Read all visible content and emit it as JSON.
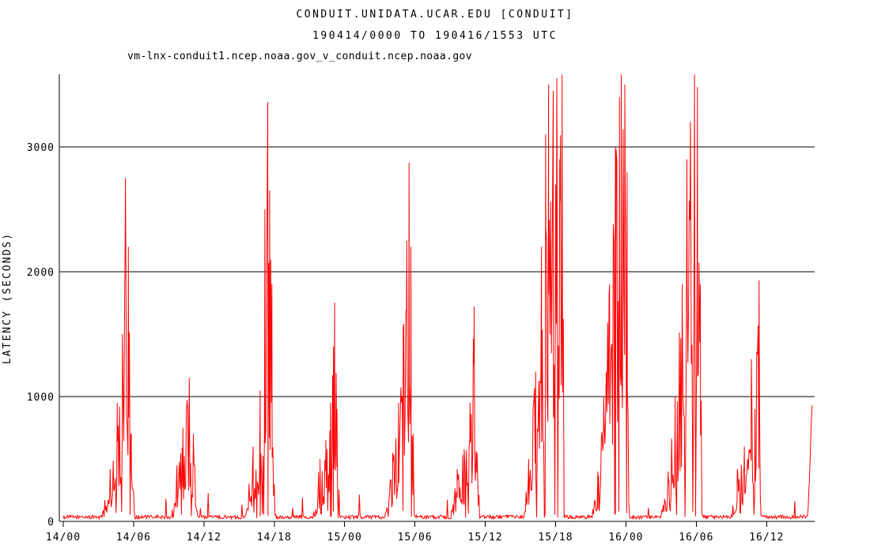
{
  "title": {
    "line1": "CONDUIT.UNIDATA.UCAR.EDU [CONDUIT]",
    "line2": "190414/0000 TO 190416/1553 UTC"
  },
  "legend": {
    "label": "vm-lnx-conduit1.ncep.noaa.gov_v_conduit.ncep.noaa.gov",
    "color": "#ff0000"
  },
  "chart_data": {
    "type": "line",
    "title": "CONDUIT.UNIDATA.UCAR.EDU [CONDUIT]",
    "subtitle": "190414/0000 TO 190416/1553 UTC",
    "series_name": "vm-lnx-conduit1.ncep.noaa.gov_v_conduit.ncep.noaa.gov",
    "line_color": "#ff0000",
    "grid": true,
    "ylabel": "LATENCY (SECONDS)",
    "xlabel": "",
    "yticks": [
      0,
      1000,
      2000,
      3000
    ],
    "ytick_labels": [
      "0",
      "1000",
      "2000",
      "3000"
    ],
    "ylim": [
      0,
      3582
    ],
    "xlim_hours": [
      0,
      63.88
    ],
    "x_tick_interval_hours": 6,
    "xtick_labels": [
      "14/00",
      "14/06",
      "14/12",
      "14/18",
      "15/00",
      "15/06",
      "15/12",
      "15/18",
      "16/00",
      "16/06",
      "16/12"
    ],
    "baseline": {
      "mean": 35,
      "noise": 30
    },
    "peak_events": [
      {
        "time": "14/0520",
        "hour": 5.3,
        "latency": 2750
      },
      {
        "time": "14/1045",
        "hour": 10.75,
        "latency": 1150
      },
      {
        "time": "14/1727",
        "hour": 17.45,
        "latency": 3360
      },
      {
        "time": "14/2309",
        "hour": 23.15,
        "latency": 1750
      },
      {
        "time": "15/0530",
        "hour": 29.5,
        "latency": 2870
      },
      {
        "time": "15/1103",
        "hour": 35.05,
        "latency": 1720
      },
      {
        "time": "15/1833",
        "hour": 42.55,
        "latency": 3580
      },
      {
        "time": "15/2336",
        "hour": 47.6,
        "latency": 3580
      },
      {
        "time": "16/0551",
        "hour": 53.85,
        "latency": 3580
      },
      {
        "time": "16/1121",
        "hour": 59.35,
        "latency": 1930
      },
      {
        "time": "16/1553",
        "hour": 63.88,
        "latency": 930
      }
    ],
    "envelope": [
      [
        0,
        35
      ],
      [
        3.3,
        60
      ],
      [
        4.0,
        420
      ],
      [
        4.6,
        950
      ],
      [
        5.05,
        1500
      ],
      [
        5.3,
        2750
      ],
      [
        5.55,
        2200
      ],
      [
        5.8,
        700
      ],
      [
        6.1,
        35
      ],
      [
        9.2,
        35
      ],
      [
        9.7,
        450
      ],
      [
        10.2,
        750
      ],
      [
        10.75,
        1150
      ],
      [
        11.1,
        700
      ],
      [
        11.45,
        35
      ],
      [
        15.5,
        35
      ],
      [
        16.2,
        600
      ],
      [
        16.8,
        1050
      ],
      [
        17.2,
        2500
      ],
      [
        17.45,
        3360
      ],
      [
        17.6,
        2650
      ],
      [
        17.8,
        1900
      ],
      [
        18.0,
        300
      ],
      [
        18.15,
        35
      ],
      [
        21.3,
        35
      ],
      [
        21.9,
        500
      ],
      [
        22.4,
        650
      ],
      [
        22.8,
        950
      ],
      [
        23.05,
        1400
      ],
      [
        23.15,
        1753
      ],
      [
        23.35,
        900
      ],
      [
        23.6,
        35
      ],
      [
        27.4,
        35
      ],
      [
        28.1,
        550
      ],
      [
        28.6,
        950
      ],
      [
        29.0,
        1550
      ],
      [
        29.3,
        2250
      ],
      [
        29.5,
        2873
      ],
      [
        29.65,
        2200
      ],
      [
        29.85,
        700
      ],
      [
        30.1,
        35
      ],
      [
        33.0,
        35
      ],
      [
        33.6,
        420
      ],
      [
        34.2,
        580
      ],
      [
        34.7,
        950
      ],
      [
        35.05,
        1720
      ],
      [
        35.3,
        550
      ],
      [
        35.55,
        35
      ],
      [
        39.2,
        35
      ],
      [
        39.7,
        500
      ],
      [
        40.3,
        1200
      ],
      [
        40.8,
        2200
      ],
      [
        41.15,
        3100
      ],
      [
        41.4,
        3500
      ],
      [
        41.8,
        3450
      ],
      [
        42.1,
        3550
      ],
      [
        42.35,
        2900
      ],
      [
        42.55,
        3580
      ],
      [
        42.75,
        35
      ],
      [
        45.0,
        35
      ],
      [
        45.6,
        400
      ],
      [
        46.1,
        1000
      ],
      [
        46.6,
        1900
      ],
      [
        47.1,
        3000
      ],
      [
        47.45,
        3400
      ],
      [
        47.6,
        3580
      ],
      [
        47.9,
        3500
      ],
      [
        48.1,
        2800
      ],
      [
        48.25,
        35
      ],
      [
        50.9,
        35
      ],
      [
        51.6,
        400
      ],
      [
        52.2,
        1000
      ],
      [
        52.8,
        1900
      ],
      [
        53.2,
        2900
      ],
      [
        53.5,
        3200
      ],
      [
        53.85,
        3580
      ],
      [
        54.1,
        3480
      ],
      [
        54.35,
        1900
      ],
      [
        54.5,
        35
      ],
      [
        56.9,
        35
      ],
      [
        57.5,
        420
      ],
      [
        58.1,
        600
      ],
      [
        58.7,
        1300
      ],
      [
        59.0,
        900
      ],
      [
        59.35,
        1930
      ],
      [
        59.5,
        35
      ],
      [
        63.5,
        35
      ],
      [
        63.65,
        320
      ],
      [
        63.88,
        930
      ]
    ],
    "spiky_regions": [
      [
        3.3,
        6.1
      ],
      [
        9.2,
        11.45
      ],
      [
        15.5,
        18.15
      ],
      [
        21.3,
        23.6
      ],
      [
        27.4,
        30.1
      ],
      [
        33.0,
        35.55
      ],
      [
        39.2,
        42.75
      ],
      [
        45.0,
        48.25
      ],
      [
        50.9,
        54.5
      ],
      [
        56.9,
        59.5
      ]
    ],
    "legend_position": "top-left",
    "text_color": "#000000",
    "background_color": "#ffffff"
  }
}
